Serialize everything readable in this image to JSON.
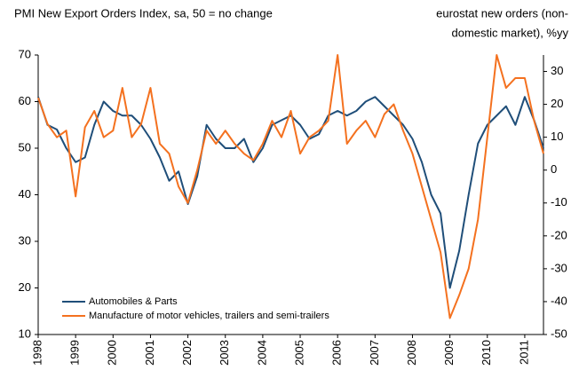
{
  "chart_data": {
    "type": "line",
    "title": "PMI New Export Orders Index, sa, 50 = no change",
    "y2_title_lines": [
      "eurostat new orders (non-",
      "domestic market), %yy"
    ],
    "x": [
      1998,
      1998.25,
      1998.5,
      1998.75,
      1999,
      1999.25,
      1999.5,
      1999.75,
      2000,
      2000.25,
      2000.5,
      2000.75,
      2001,
      2001.25,
      2001.5,
      2001.75,
      2002,
      2002.25,
      2002.5,
      2002.75,
      2003,
      2003.25,
      2003.5,
      2003.75,
      2004,
      2004.25,
      2004.5,
      2004.75,
      2005,
      2005.25,
      2005.5,
      2005.75,
      2006,
      2006.25,
      2006.5,
      2006.75,
      2007,
      2007.25,
      2007.5,
      2007.75,
      2008,
      2008.25,
      2008.5,
      2008.75,
      2009,
      2009.25,
      2009.5,
      2009.75,
      2010,
      2010.25,
      2010.5,
      2010.75,
      2011,
      2011.25,
      2011.5
    ],
    "series": [
      {
        "name": "Automobiles & Parts",
        "color": "#1f4e79",
        "axis": "y",
        "values": [
          61,
          55,
          54,
          50,
          47,
          48,
          55,
          60,
          58,
          57,
          57,
          55,
          52,
          48,
          43,
          45,
          38,
          44,
          55,
          52,
          50,
          50,
          52,
          47,
          50,
          55,
          56,
          57,
          55,
          52,
          53,
          57,
          58,
          57,
          58,
          60,
          61,
          59,
          57,
          55,
          52,
          47,
          40,
          36,
          20,
          28,
          40,
          51,
          55,
          57,
          59,
          55,
          61,
          56,
          50
        ]
      },
      {
        "name": "Manufacture of motor vehicles, trailers and semi-trailers",
        "color": "#f4711f",
        "axis": "y2",
        "values": [
          22,
          14,
          10,
          12,
          -8,
          13,
          18,
          10,
          12,
          25,
          10,
          14,
          25,
          8,
          5,
          -5,
          -10,
          0,
          12,
          8,
          12,
          8,
          5,
          3,
          8,
          15,
          10,
          18,
          5,
          10,
          12,
          15,
          35,
          8,
          12,
          15,
          10,
          17,
          20,
          12,
          5,
          -5,
          -15,
          -25,
          -45,
          -38,
          -30,
          -15,
          10,
          35,
          25,
          28,
          28,
          15,
          5
        ]
      }
    ],
    "xlim": [
      1998,
      2011.5
    ],
    "xticks": [
      1998,
      1999,
      2000,
      2001,
      2002,
      2003,
      2004,
      2005,
      2006,
      2007,
      2008,
      2009,
      2010,
      2011
    ],
    "ylim": [
      10,
      70
    ],
    "yticks": [
      10,
      20,
      30,
      40,
      50,
      60,
      70
    ],
    "y2lim": [
      -50,
      35
    ],
    "y2ticks": [
      -50,
      -40,
      -30,
      -20,
      -10,
      0,
      10,
      20,
      30
    ],
    "legend": "lower left"
  }
}
